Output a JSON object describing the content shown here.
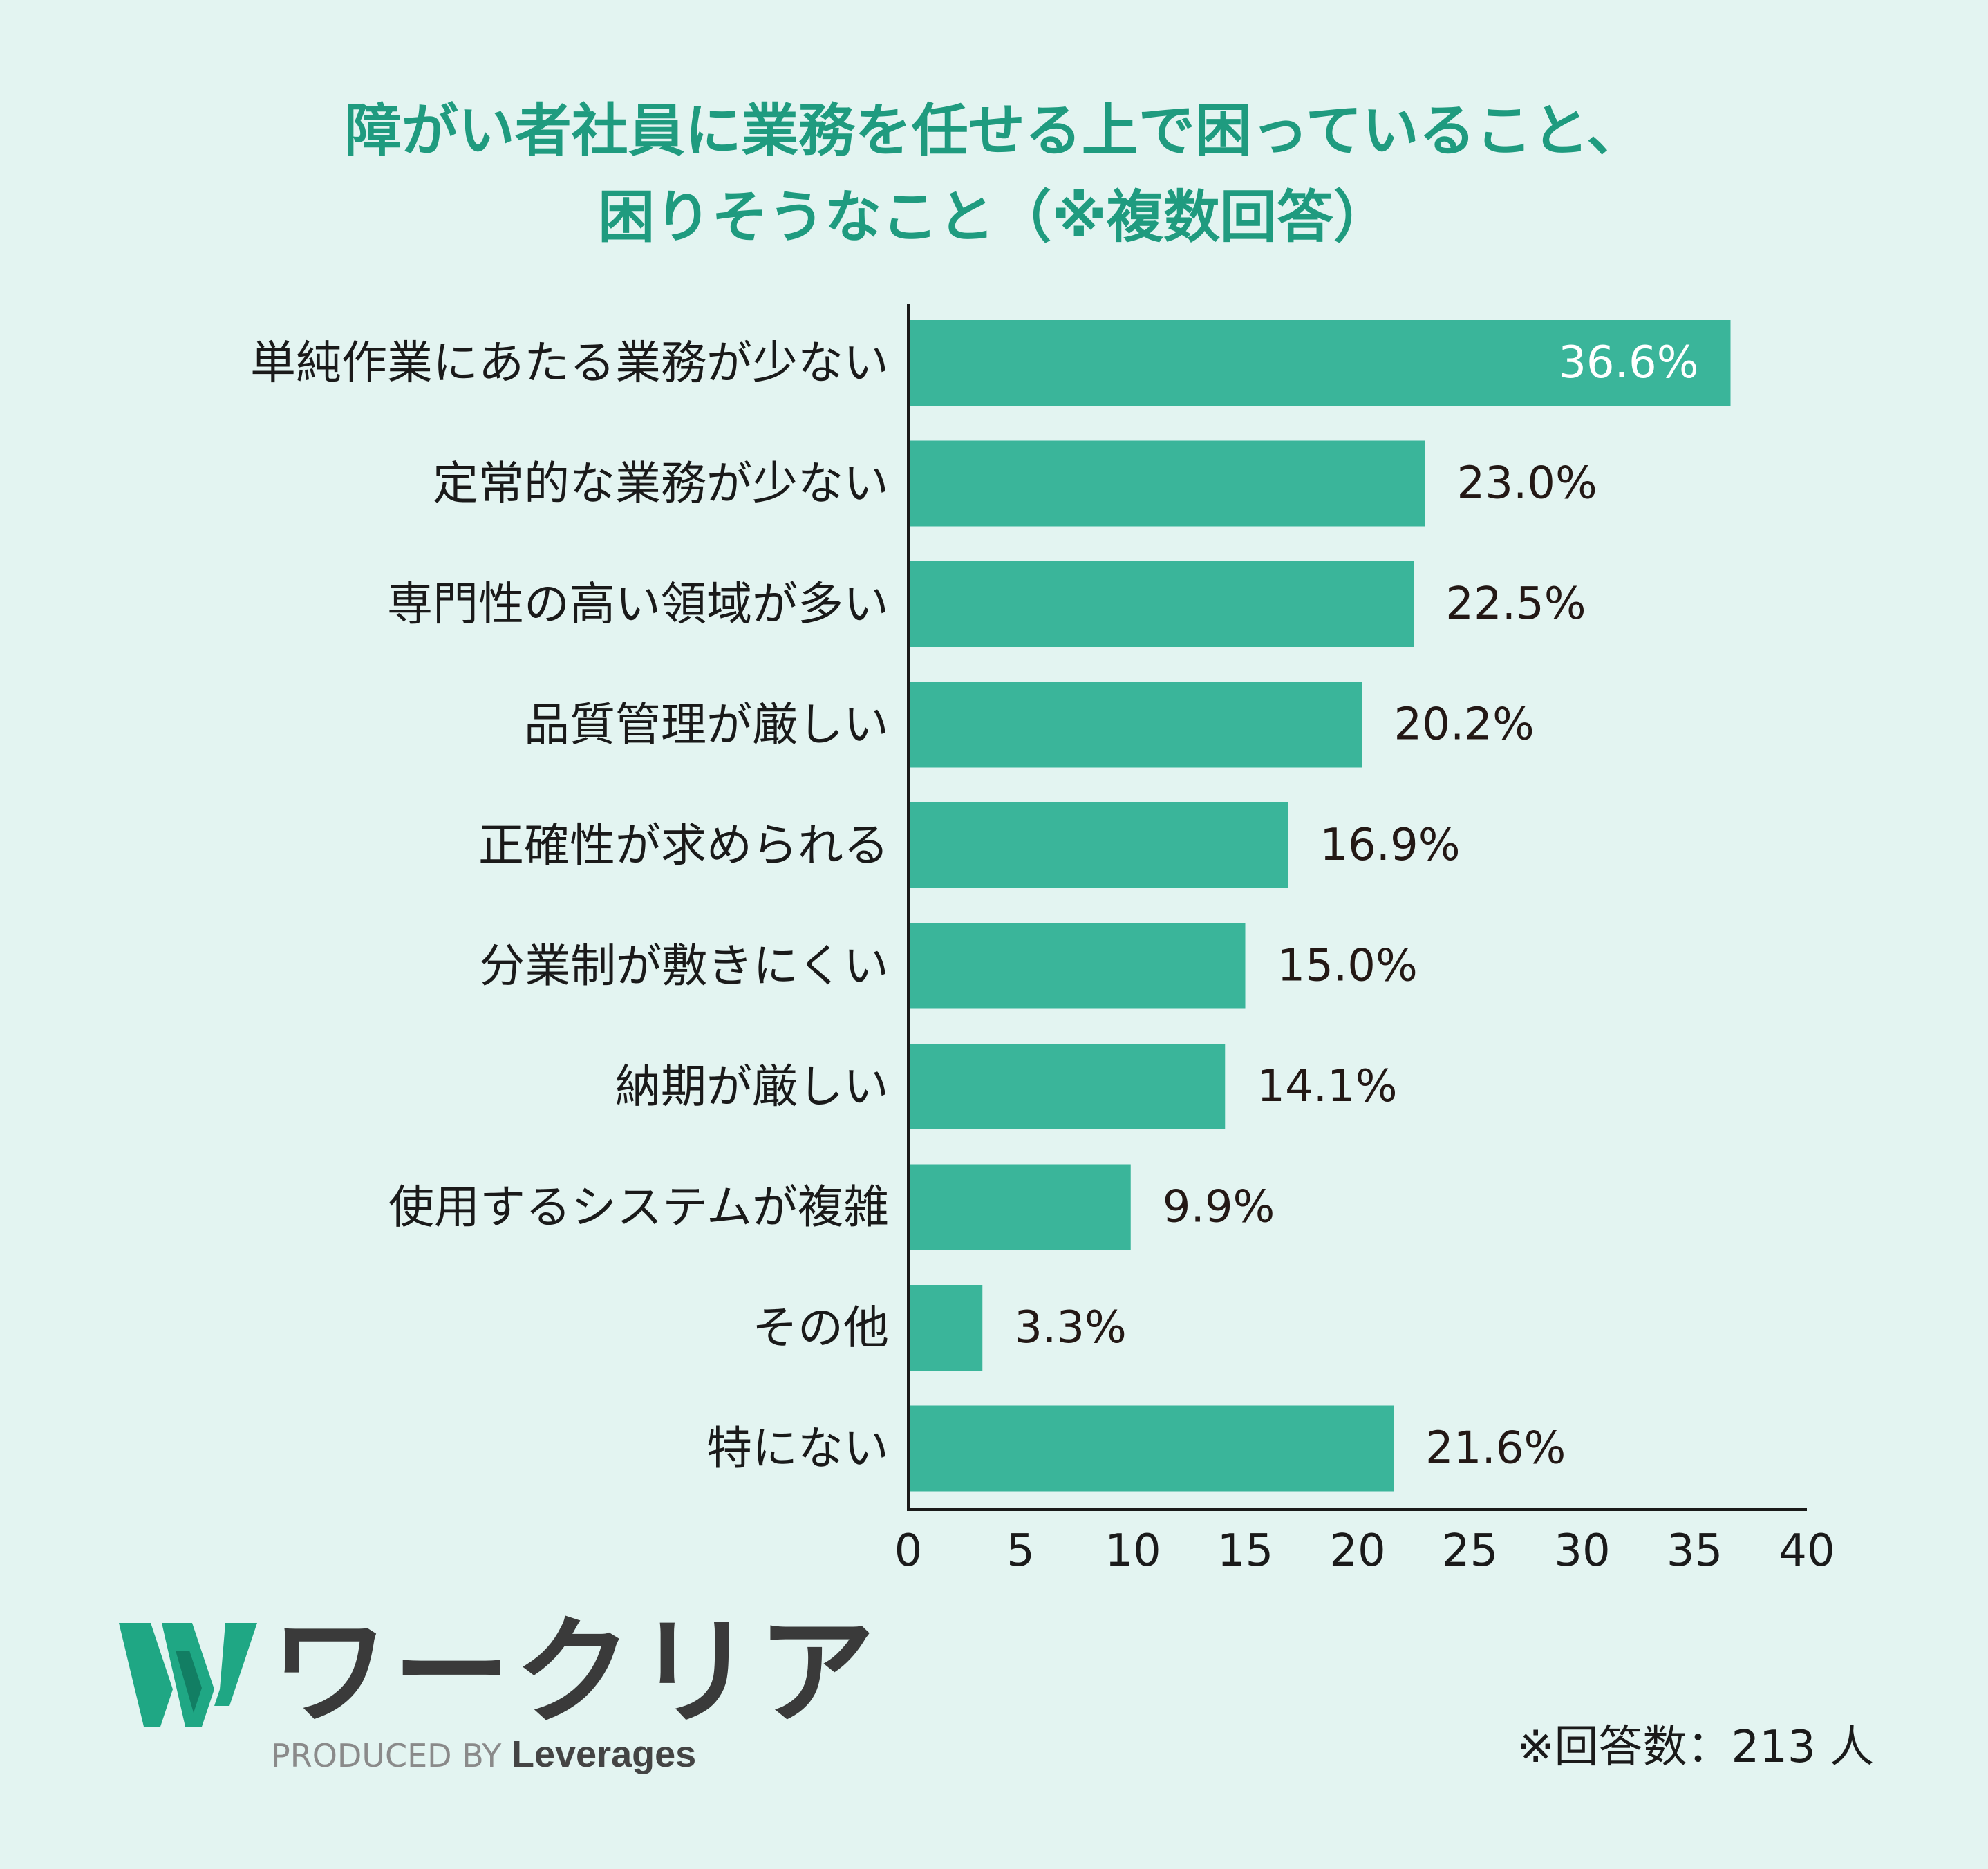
{
  "title_line1": "障がい者社員に業務を任せる上で困っていること、",
  "title_line2": "困りそうなこと（※複数回答）",
  "colors": {
    "background": "#e3f4f1",
    "bar": "#3ab59a",
    "title": "#1f9b7f",
    "logo_green": "#1fa784",
    "logo_text": "#3a3a3a"
  },
  "chart_data": {
    "type": "bar",
    "orientation": "horizontal",
    "categories": [
      "単純作業にあたる業務が少ない",
      "定常的な業務が少ない",
      "専門性の高い領域が多い",
      "品質管理が厳しい",
      "正確性が求められる",
      "分業制が敷きにくい",
      "納期が厳しい",
      "使用するシステムが複雑",
      "その他",
      "特にない"
    ],
    "values": [
      36.6,
      23.0,
      22.5,
      20.2,
      16.9,
      15.0,
      14.1,
      9.9,
      3.3,
      21.6
    ],
    "value_labels": [
      "36.6%",
      "23.0%",
      "22.5%",
      "20.2%",
      "16.9%",
      "15.0%",
      "14.1%",
      "9.9%",
      "3.3%",
      "21.6%"
    ],
    "xlim": [
      0,
      40
    ],
    "ticks": [
      0,
      5,
      10,
      15,
      20,
      25,
      30,
      35,
      40
    ],
    "grid": false,
    "legend": "none"
  },
  "logo": {
    "text": "ワークリア",
    "produced_by": "PRODUCED BY",
    "brand": "Leverages"
  },
  "respondents_note": "※回答数：213 人"
}
